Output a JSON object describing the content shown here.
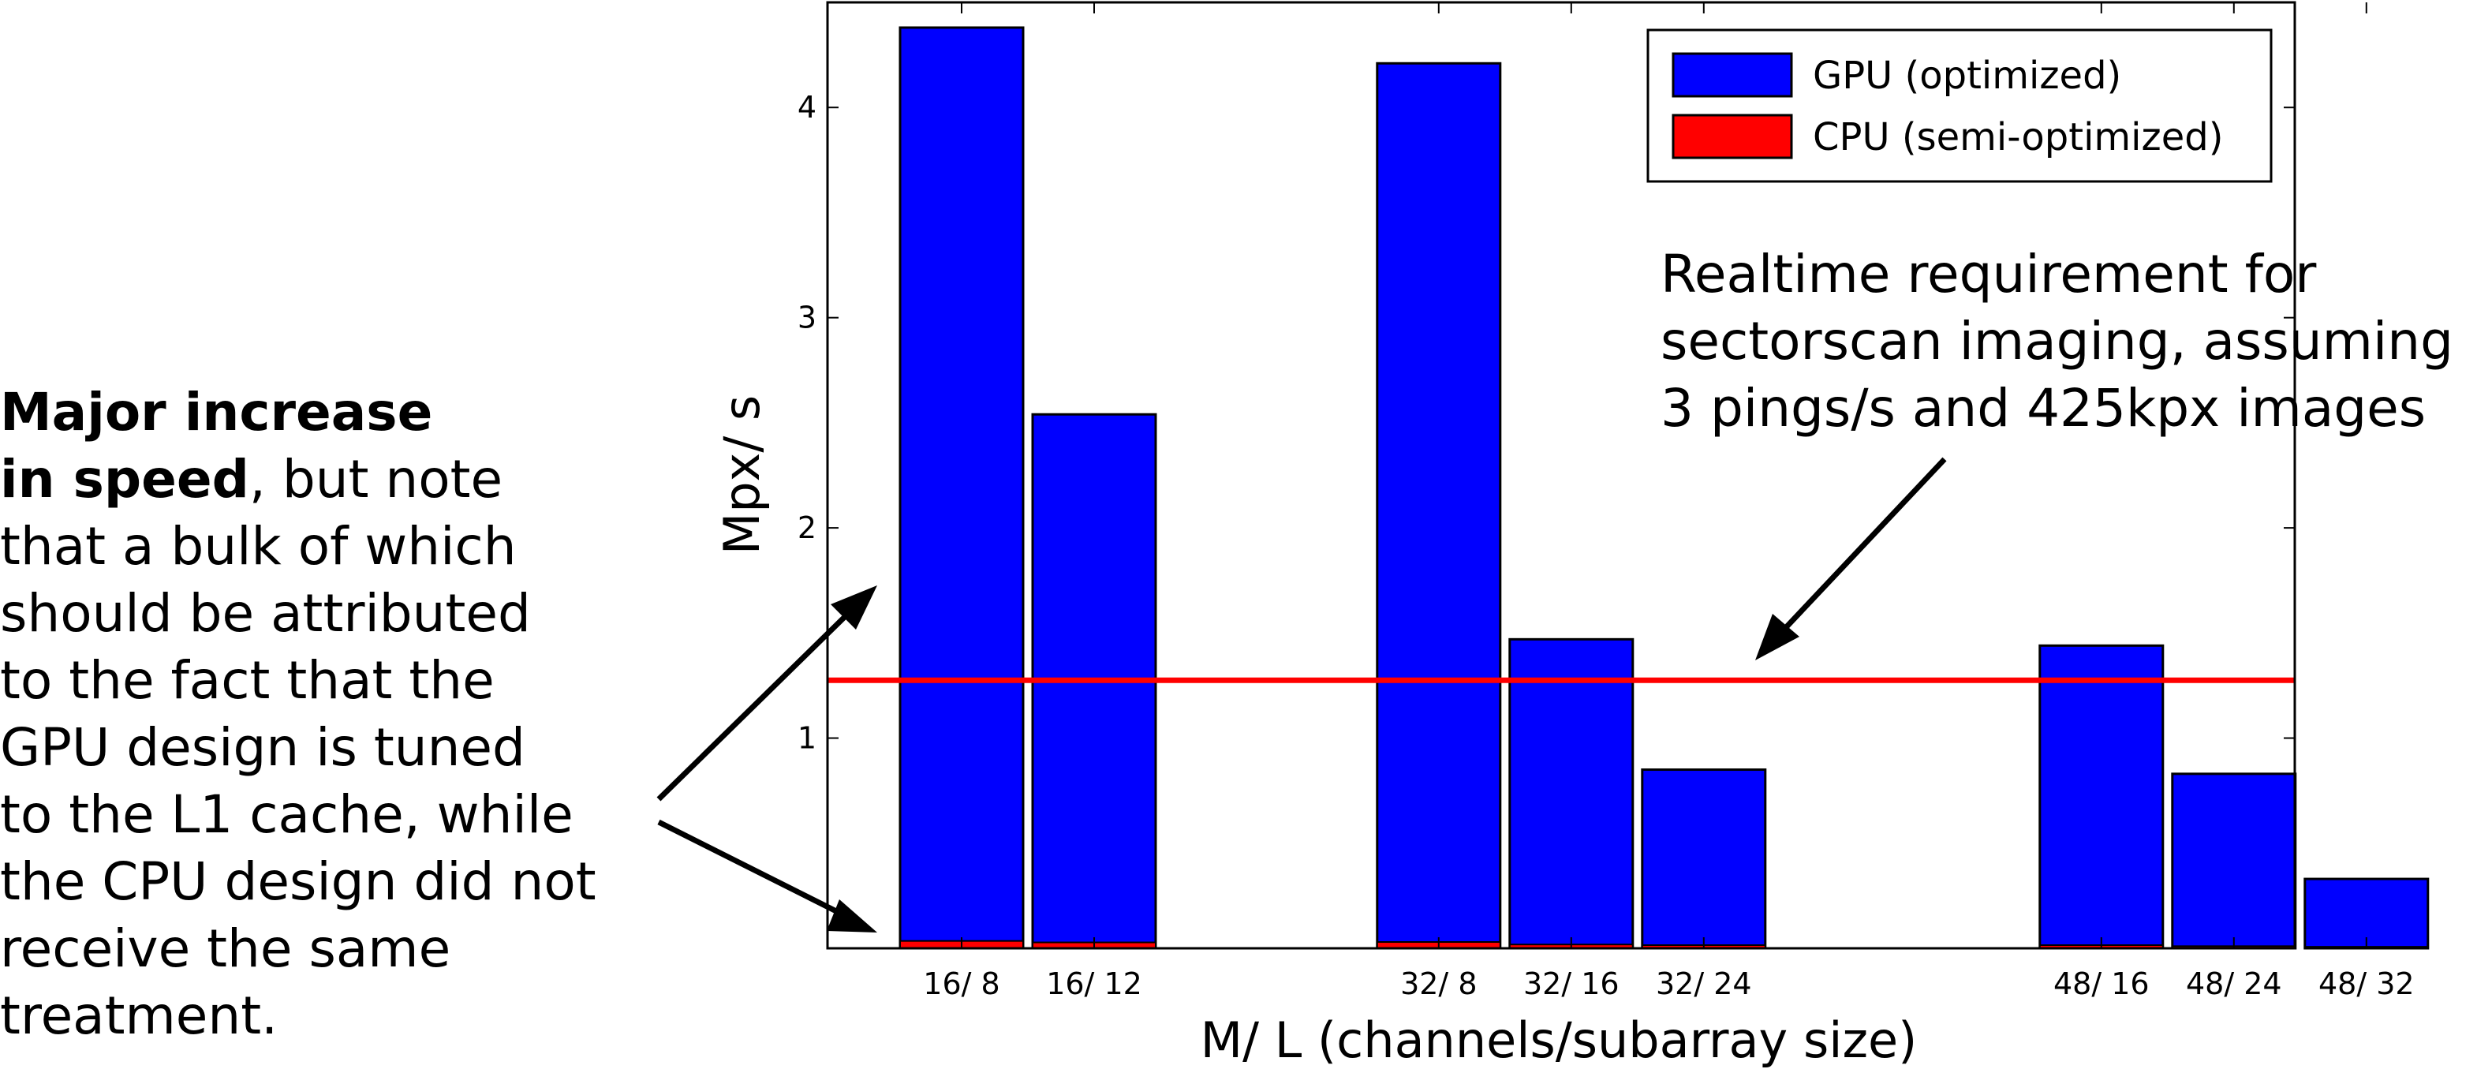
{
  "chart_data": {
    "type": "bar",
    "categories": [
      "16/8",
      "16/12",
      "32/8",
      "32/16",
      "32/24",
      "48/16",
      "48/24",
      "48/32"
    ],
    "series": [
      {
        "name": "GPU (optimized)",
        "values": [
          4.38,
          2.54,
          4.21,
          1.47,
          0.85,
          1.44,
          0.83,
          0.33
        ],
        "color": "#0000ff"
      },
      {
        "name": "CPU (semi-optimized)",
        "values": [
          0.035,
          0.028,
          0.03,
          0.018,
          0.015,
          0.015,
          0.01,
          0.007
        ],
        "color": "#ff0000"
      }
    ],
    "xlabel": "M/ L (channels/subarray size)",
    "ylabel": "Mpx/ s",
    "ylim": [
      0,
      4.5
    ],
    "yticks": [
      1,
      2,
      3,
      4
    ],
    "reference_line": {
      "value": 1.275,
      "color": "#ff0000"
    },
    "legend_position": "top-right",
    "grid": false
  },
  "annotations": {
    "left_bold_lines": [
      "Major increase",
      "in speed"
    ],
    "left_rest_first": ", but note",
    "left_lines": [
      "that a bulk of which",
      "should be attributed",
      "to the fact that the",
      "GPU design is tuned",
      "to the L1 cache, while",
      "the CPU design did not",
      "receive the same",
      "treatment."
    ],
    "right_lines": [
      "Realtime requirement for",
      "sectorscan imaging, assuming",
      "3 pings/s and 425kpx images"
    ]
  }
}
